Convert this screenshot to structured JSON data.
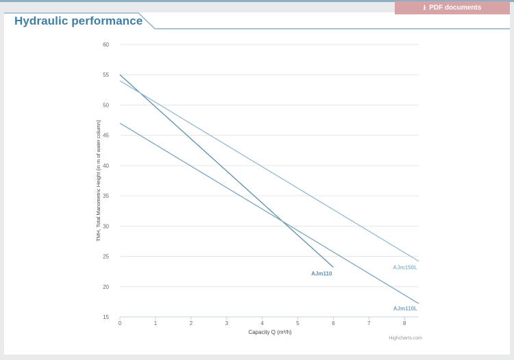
{
  "header": {
    "title": "Hydraulic performance",
    "pdf_button_label": "PDF documents",
    "pdf_icon": "download-icon"
  },
  "colors": {
    "accent": "#3d7ea6",
    "pdf_button": "#d7a3a7",
    "rule": "#8fb0c4"
  },
  "chart_data": {
    "type": "line",
    "xlabel": "Capacity Q (m³/h)",
    "ylabel": "TMH, Total Manometric Height (in m of water column)",
    "xlim": [
      0,
      8.4
    ],
    "ylim": [
      15,
      60
    ],
    "x_ticks": [
      "0",
      "1",
      "2",
      "3",
      "4",
      "5",
      "6",
      "7",
      "8"
    ],
    "y_ticks": [
      "15",
      "20",
      "25",
      "30",
      "35",
      "40",
      "45",
      "50",
      "55",
      "60"
    ],
    "grid": true,
    "credits": "Highcharts.com",
    "series": [
      {
        "name": "AJm110",
        "x": [
          0,
          6
        ],
        "y": [
          55,
          23.2
        ],
        "color": "#5b8eab"
      },
      {
        "name": "AJm150L",
        "x": [
          0,
          8.4
        ],
        "y": [
          54,
          24.2
        ],
        "color": "#94b9d1"
      },
      {
        "name": "AJm110L",
        "x": [
          0,
          8.4
        ],
        "y": [
          47,
          17.2
        ],
        "color": "#7aa5c2"
      }
    ]
  }
}
